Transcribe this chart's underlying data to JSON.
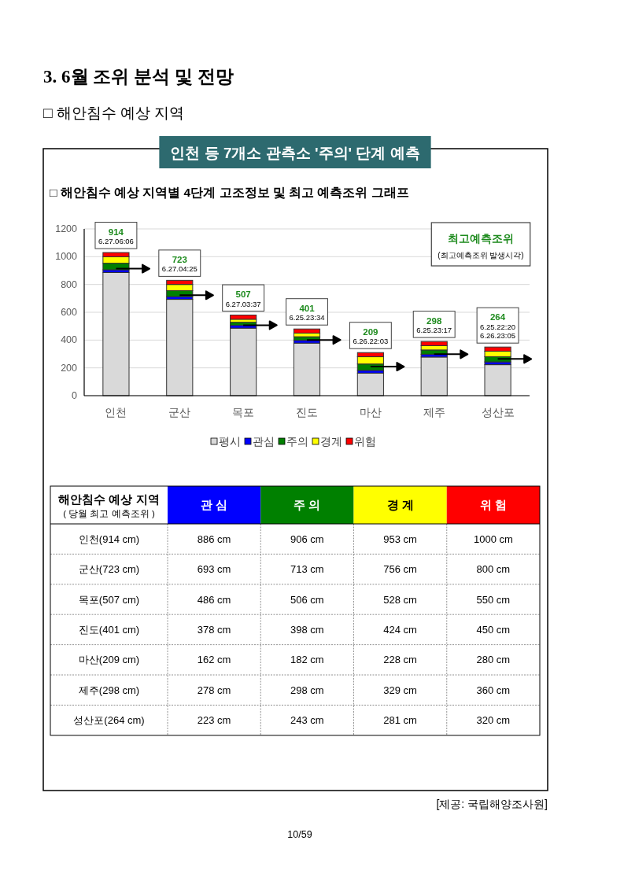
{
  "chart_data": [
    {
      "type": "bar",
      "stacked": true,
      "title": "인천 등 7개소 관측소 '주의' 단계 예측",
      "subtitle": "□ 해안침수 예상 지역별 4단계 고조정보 및 최고 예측조위 그래프",
      "categories": [
        "인천",
        "군산",
        "목포",
        "진도",
        "마산",
        "제주",
        "성산포"
      ],
      "series": [
        {
          "name": "평시",
          "color": "#d9d9d9",
          "values": [
            886,
            693,
            486,
            378,
            162,
            278,
            223
          ]
        },
        {
          "name": "관심",
          "color": "#0000ff",
          "values": [
            20,
            20,
            20,
            20,
            20,
            20,
            20
          ]
        },
        {
          "name": "주의",
          "color": "#008000",
          "values": [
            47,
            43,
            22,
            26,
            46,
            31,
            38
          ]
        },
        {
          "name": "경계",
          "color": "#ffff00",
          "values": [
            47,
            44,
            22,
            26,
            52,
            31,
            39
          ]
        },
        {
          "name": "위험",
          "color": "#ff0000",
          "values": [
            30,
            30,
            30,
            30,
            30,
            30,
            30
          ]
        }
      ],
      "ylim": [
        0,
        1200
      ],
      "yticks": [
        0,
        200,
        400,
        600,
        800,
        1000,
        1200
      ],
      "grid": "y",
      "legend": "bottom",
      "annotations": [
        "3. 6월 조위 분석 및 전망",
        "□ 해안침수 예상 지역",
        "최고예측조위",
        "(최고예측조위 발생시각)",
        {
          "text": "914\n6.27.06:06",
          "x": "인천",
          "y": 914
        },
        {
          "text": "723\n6.27.04:25",
          "x": "군산",
          "y": 723
        },
        {
          "text": "507\n6.27.03:37",
          "x": "목포",
          "y": 507
        },
        {
          "text": "401\n6.25.23:34",
          "x": "진도",
          "y": 401
        },
        {
          "text": "209\n6.26.22:03",
          "x": "마산",
          "y": 209
        },
        {
          "text": "298\n6.25.23:17",
          "x": "제주",
          "y": 298
        },
        {
          "text": "264\n6.25.22:20\n6.26.23:05",
          "x": "성산포",
          "y": 264
        }
      ]
    },
    {
      "type": "heatmap",
      "ylabel": "해안침수 예상 지역\n( 당월 최고 예측조위 )",
      "categories": [
        "관 심",
        "주 의",
        "경 계",
        "위 험"
      ],
      "colors": [
        "#0000ff",
        "#008000",
        "#ffff00",
        "#ff0000"
      ],
      "y_categories": [
        "인천(914 cm)",
        "군산(723 cm)",
        "목포(507 cm)",
        "진도(401 cm)",
        "마산(209 cm)",
        "제주(298 cm)",
        "성산포(264 cm)"
      ],
      "cells": [
        [
          886,
          906,
          953,
          1000
        ],
        [
          693,
          713,
          756,
          800
        ],
        [
          486,
          506,
          528,
          550
        ],
        [
          378,
          398,
          424,
          450
        ],
        [
          162,
          182,
          228,
          280
        ],
        [
          278,
          298,
          329,
          360
        ],
        [
          223,
          243,
          281,
          320
        ]
      ],
      "cell_labels": [
        [
          "886 cm",
          "906 cm",
          "953 cm",
          "1000 cm"
        ],
        [
          "693 cm",
          "713 cm",
          "756 cm",
          "800 cm"
        ],
        [
          "486 cm",
          "506 cm",
          "528 cm",
          "550 cm"
        ],
        [
          "378 cm",
          "398 cm",
          "424 cm",
          "450 cm"
        ],
        [
          "162 cm",
          "182 cm",
          "228 cm",
          "280 cm"
        ],
        [
          "278 cm",
          "298 cm",
          "329 cm",
          "360 cm"
        ],
        [
          "223 cm",
          "243 cm",
          "281 cm",
          "320 cm"
        ]
      ],
      "annotations": [
        "[제공: 국립해양조사원]",
        "10/59"
      ]
    }
  ]
}
